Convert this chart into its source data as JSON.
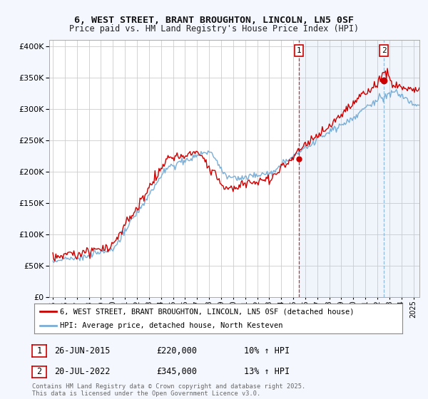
{
  "title1": "6, WEST STREET, BRANT BROUGHTON, LINCOLN, LN5 0SF",
  "title2": "Price paid vs. HM Land Registry's House Price Index (HPI)",
  "legend_label1": "6, WEST STREET, BRANT BROUGHTON, LINCOLN, LN5 0SF (detached house)",
  "legend_label2": "HPI: Average price, detached house, North Kesteven",
  "annotation1_label": "1",
  "annotation1_date": "26-JUN-2015",
  "annotation1_price": "£220,000",
  "annotation1_hpi": "10% ↑ HPI",
  "annotation2_label": "2",
  "annotation2_date": "20-JUL-2022",
  "annotation2_price": "£345,000",
  "annotation2_hpi": "13% ↑ HPI",
  "footer": "Contains HM Land Registry data © Crown copyright and database right 2025.\nThis data is licensed under the Open Government Licence v3.0.",
  "line1_color": "#cc0000",
  "line2_color": "#7aaed6",
  "vline1_color": "#cc0000",
  "vline2_color": "#7aaed6",
  "shade_color": "#ddeeff",
  "background_color": "#f5f7ff",
  "plot_bg_color": "#ffffff",
  "grid_color": "#cccccc",
  "ylim": [
    0,
    410000
  ],
  "yticks": [
    0,
    50000,
    100000,
    150000,
    200000,
    250000,
    300000,
    350000,
    400000
  ],
  "sale1_year": 2015.48,
  "sale1_price": 220000,
  "sale2_year": 2022.55,
  "sale2_price": 345000,
  "xmin": 1994.7,
  "xmax": 2025.5
}
